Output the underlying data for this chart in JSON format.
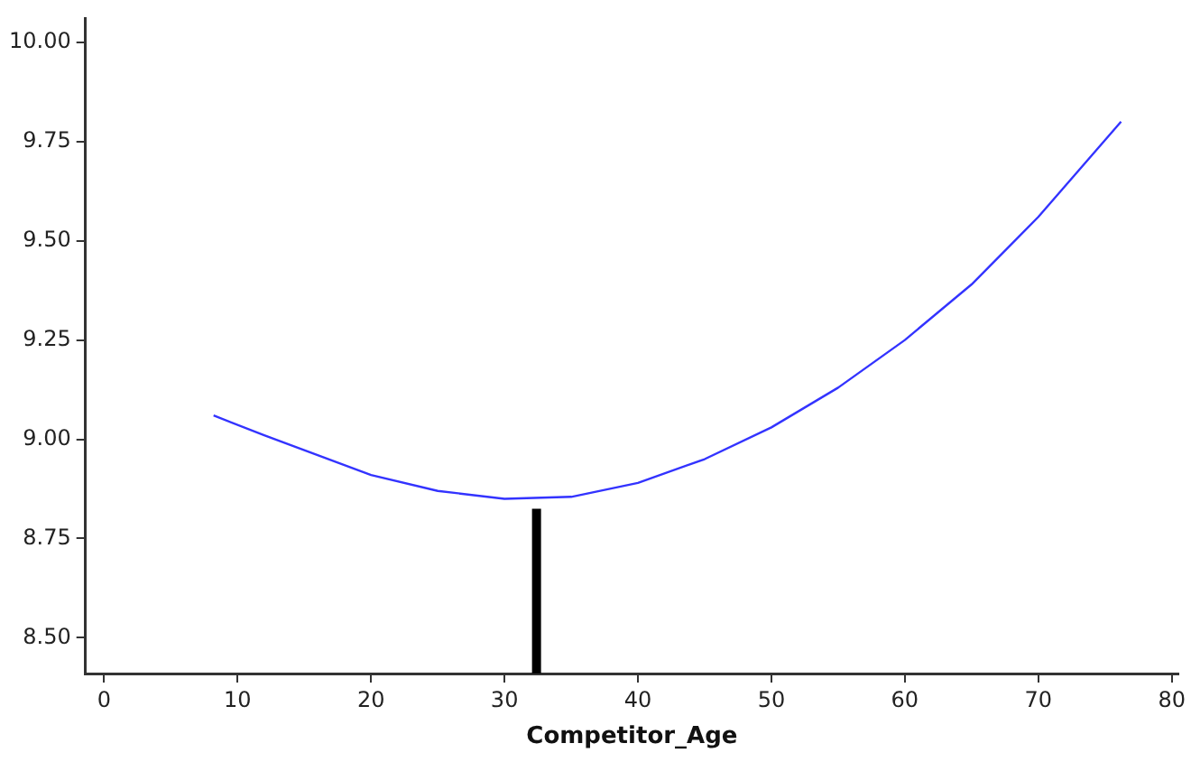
{
  "chart_data": {
    "type": "line",
    "xlabel": "Competitor_Age",
    "xlim": [
      -1.4,
      80.5
    ],
    "xticks": [
      0,
      10,
      20,
      30,
      40,
      50,
      60,
      70,
      80
    ],
    "ylim": [
      8.41,
      10.06
    ],
    "yticks": [
      {
        "value": 8.5,
        "label": "8.50"
      },
      8.75,
      {
        "value": 9,
        "label": "9.00"
      },
      9.25,
      {
        "value": 9.5,
        "label": "9.50"
      },
      9.75,
      {
        "value": 10,
        "label": "10.00"
      }
    ],
    "grid": false,
    "legend": false,
    "marker": "none",
    "series": [
      {
        "color": "#3333ff",
        "x": [
          8.2,
          12,
          16,
          20,
          25,
          30,
          35,
          40,
          45,
          50,
          55,
          60,
          65,
          70,
          76.2
        ],
        "values": [
          9.06,
          9.01,
          8.96,
          8.91,
          8.87,
          8.85,
          8.855,
          8.89,
          8.95,
          9.03,
          9.13,
          9.25,
          9.39,
          9.56,
          9.8
        ]
      },
      {
        "color": "#000000",
        "x": [
          32.4,
          32.4
        ],
        "values": [
          8.41,
          8.825
        ]
      }
    ]
  }
}
